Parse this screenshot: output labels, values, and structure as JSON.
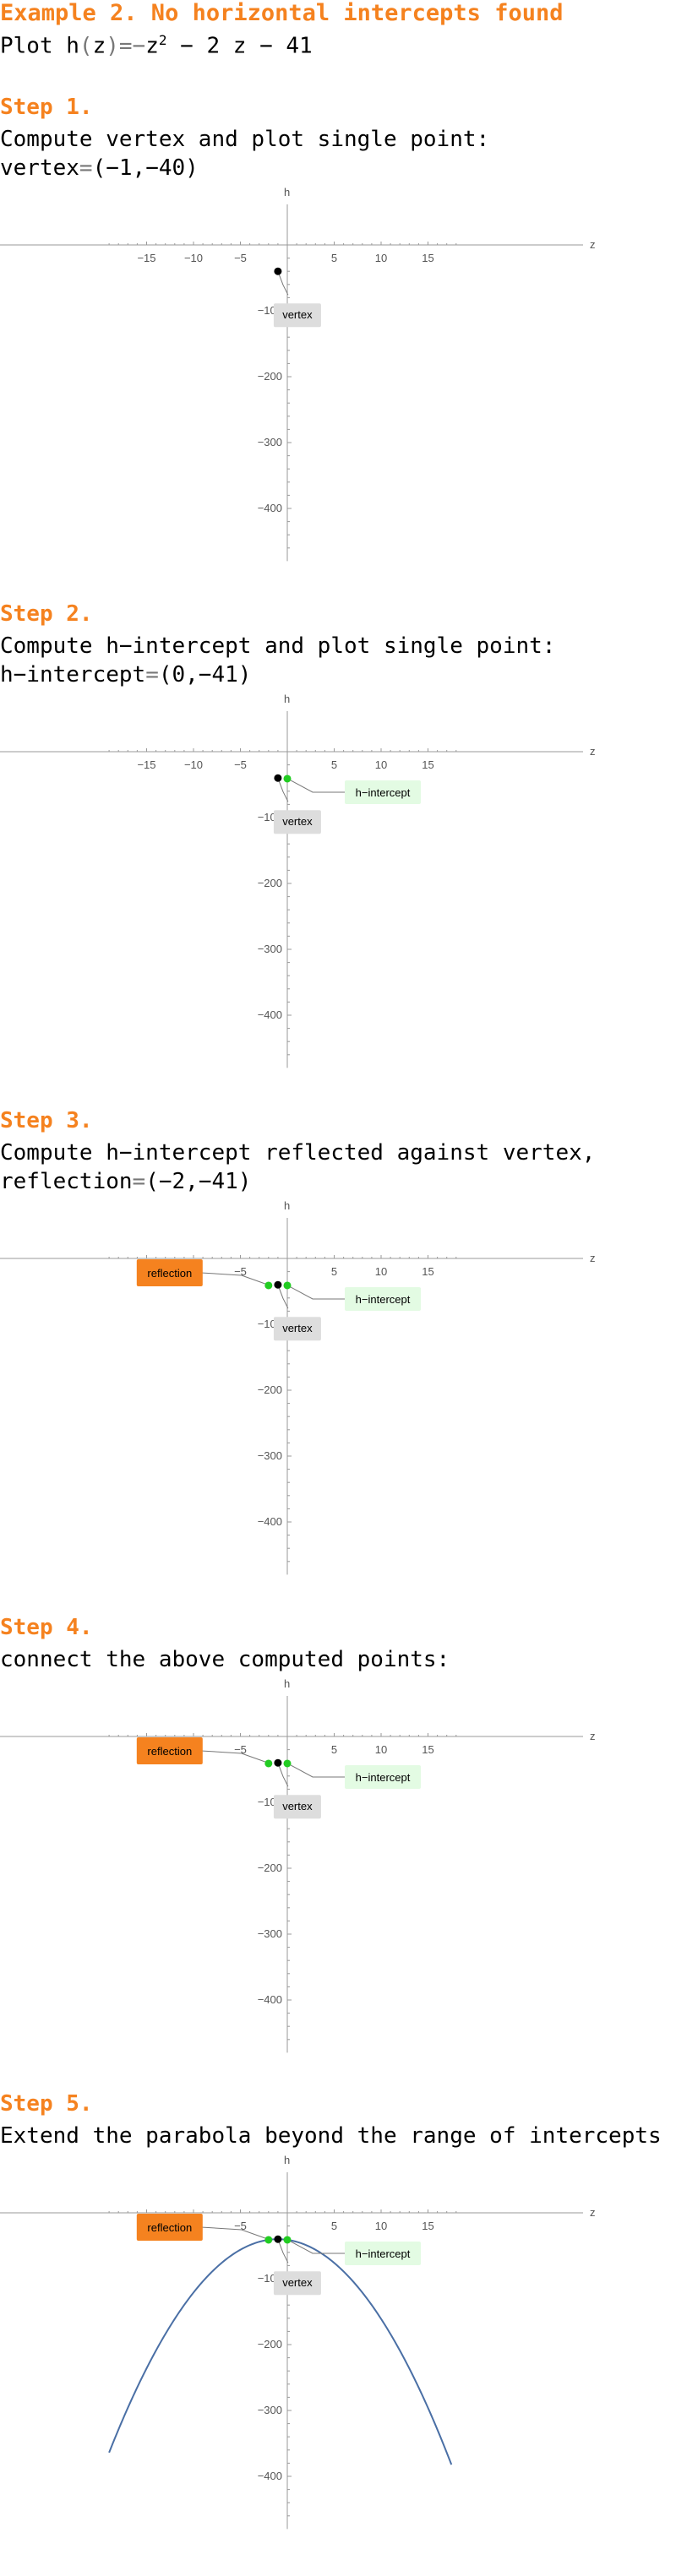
{
  "title": "Example 2. No horizontal intercepts found",
  "subtitle": {
    "prefix": "Plot h",
    "open": "(",
    "var": "z",
    "close": ")",
    "eq": "=",
    "minus": "−",
    "z": "z",
    "sup": "2",
    "rest": " − 2 z − 41"
  },
  "steps": [
    {
      "head": "Step 1.",
      "lines": [
        "Compute vertex and plot single point:"
      ],
      "result": {
        "label": "vertex",
        "value": "(−1,−40)"
      }
    },
    {
      "head": "Step 2.",
      "lines": [
        "Compute h−intercept and plot single point:"
      ],
      "result": {
        "label": "h−intercept",
        "value": "(0,−41)"
      }
    },
    {
      "head": "Step 3.",
      "lines": [
        "Compute h−intercept reflected against vertex,"
      ],
      "result": {
        "label": "reflection",
        "value": "(−2,−41)"
      }
    },
    {
      "head": "Step 4.",
      "lines": [
        "connect the above computed points:"
      ],
      "result": null
    },
    {
      "head": "Step 5.",
      "lines": [
        "Extend the parabola beyond the range of intercepts"
      ],
      "result": null
    }
  ],
  "annotations": {
    "vertex": "vertex",
    "h_intercept": "h−intercept",
    "reflection": "reflection"
  },
  "colors": {
    "accent": "#f5821f",
    "point_black": "#000000",
    "point_green": "#22cc22",
    "curve": "#4a6fa5",
    "vertex_box": "#dddddd",
    "intercept_box": "#e3fbe3",
    "reflection_box": "#f5821f"
  },
  "chart_data": [
    {
      "type": "scatter",
      "xlabel": "z",
      "ylabel": "h",
      "xlim": [
        -19,
        19
      ],
      "ylim": [
        -480,
        20
      ],
      "xticks": [
        -15,
        -10,
        -5,
        5,
        10,
        15
      ],
      "yticks": [
        -100,
        -200,
        -300,
        -400
      ],
      "points": [
        {
          "x": -1,
          "y": -40,
          "role": "vertex"
        }
      ],
      "curve": false
    },
    {
      "type": "scatter",
      "xlabel": "z",
      "ylabel": "h",
      "xlim": [
        -19,
        19
      ],
      "ylim": [
        -480,
        20
      ],
      "xticks": [
        -15,
        -10,
        -5,
        5,
        10,
        15
      ],
      "yticks": [
        -100,
        -200,
        -300,
        -400
      ],
      "points": [
        {
          "x": -1,
          "y": -40,
          "role": "vertex"
        },
        {
          "x": 0,
          "y": -41,
          "role": "h_intercept"
        }
      ],
      "curve": false
    },
    {
      "type": "scatter",
      "xlabel": "z",
      "ylabel": "h",
      "xlim": [
        -19,
        19
      ],
      "ylim": [
        -480,
        20
      ],
      "xticks": [
        -15,
        -10,
        -5,
        5,
        10,
        15
      ],
      "yticks": [
        -100,
        -200,
        -300,
        -400
      ],
      "points": [
        {
          "x": -1,
          "y": -40,
          "role": "vertex"
        },
        {
          "x": 0,
          "y": -41,
          "role": "h_intercept"
        },
        {
          "x": -2,
          "y": -41,
          "role": "reflection"
        }
      ],
      "curve": false
    },
    {
      "type": "scatter",
      "xlabel": "z",
      "ylabel": "h",
      "xlim": [
        -19,
        19
      ],
      "ylim": [
        -480,
        20
      ],
      "xticks": [
        -15,
        -10,
        -5,
        5,
        10,
        15
      ],
      "yticks": [
        -100,
        -200,
        -300,
        -400
      ],
      "points": [
        {
          "x": -1,
          "y": -40,
          "role": "vertex"
        },
        {
          "x": 0,
          "y": -41,
          "role": "h_intercept"
        },
        {
          "x": -2,
          "y": -41,
          "role": "reflection"
        }
      ],
      "curve": false
    },
    {
      "type": "line",
      "xlabel": "z",
      "ylabel": "h",
      "xlim": [
        -19,
        19
      ],
      "ylim": [
        -480,
        20
      ],
      "xticks": [
        -15,
        -10,
        -5,
        5,
        10,
        15
      ],
      "yticks": [
        -100,
        -200,
        -300,
        -400
      ],
      "points": [
        {
          "x": -1,
          "y": -40,
          "role": "vertex"
        },
        {
          "x": 0,
          "y": -41,
          "role": "h_intercept"
        },
        {
          "x": -2,
          "y": -41,
          "role": "reflection"
        }
      ],
      "curve": true,
      "curve_x_range": [
        -19,
        17.5
      ],
      "function": "h(z) = -z^2 - 2z - 41"
    }
  ]
}
